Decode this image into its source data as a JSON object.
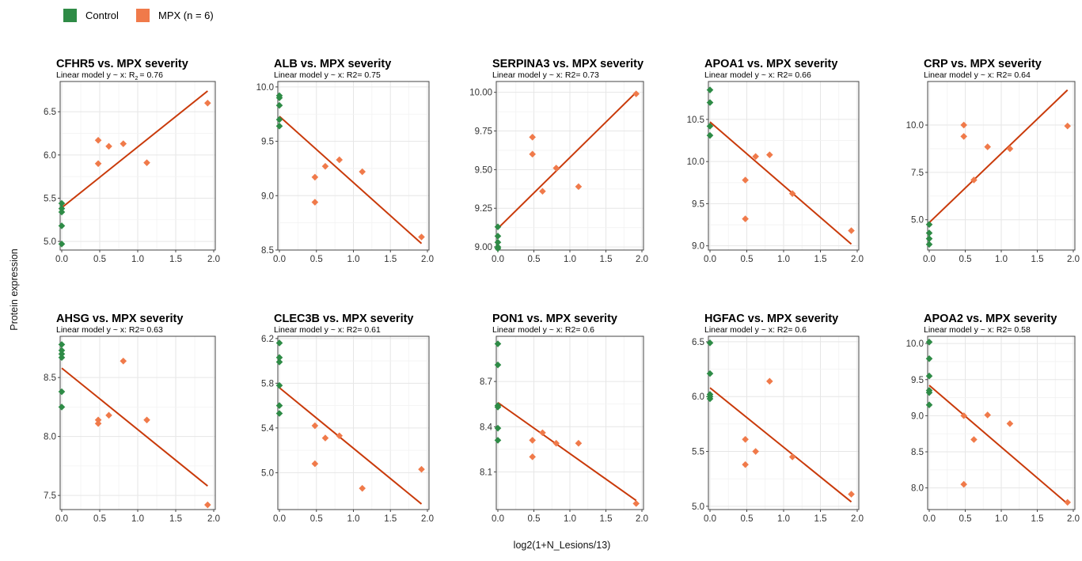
{
  "legend": {
    "items": [
      {
        "label": "Control",
        "color": "#2e8b46"
      },
      {
        "label": "MPX (n = 6)",
        "color": "#f07a4a"
      }
    ]
  },
  "axis": {
    "xlabel": "log2(1+N_Lesions/13)",
    "ylabel": "Protein expression"
  },
  "colors": {
    "control": "#2e8b46",
    "mpx": "#f07a4a",
    "fit": "#c93a0a",
    "grid": "#e6e6e6",
    "frame": "#444444"
  },
  "chart_data": [
    {
      "type": "scatter",
      "title": "CFHR5 vs. MPX severity",
      "subtitle": "Linear model y ~ x: R",
      "subtitle_sub": "2",
      "subtitle_tail": "= 0.76",
      "xlim": [
        0,
        2
      ],
      "xticks": [
        0.0,
        0.5,
        1.0,
        1.5,
        2.0
      ],
      "ylim": [
        4.9,
        6.85
      ],
      "yticks": [
        5.0,
        5.5,
        6.0,
        6.5
      ],
      "control": [
        [
          0,
          5.44
        ],
        [
          0,
          5.38
        ],
        [
          0,
          5.34
        ],
        [
          0,
          5.18
        ],
        [
          0,
          4.97
        ]
      ],
      "mpx": [
        [
          0.48,
          6.17
        ],
        [
          0.48,
          5.9
        ],
        [
          0.62,
          6.1
        ],
        [
          0.81,
          6.13
        ],
        [
          1.12,
          5.91
        ],
        [
          1.92,
          6.6
        ]
      ],
      "fit": [
        [
          0,
          5.39
        ],
        [
          1.92,
          6.74
        ]
      ]
    },
    {
      "type": "scatter",
      "title": "ALB vs. MPX severity",
      "subtitle": "Linear model y ~ x: R2= 0.75",
      "xlim": [
        0,
        2
      ],
      "xticks": [
        0.0,
        0.5,
        1.0,
        1.5,
        2.0
      ],
      "ylim": [
        8.5,
        10.05
      ],
      "yticks": [
        8.5,
        9.0,
        9.5,
        10.0
      ],
      "control": [
        [
          0,
          9.92
        ],
        [
          0,
          9.9
        ],
        [
          0,
          9.83
        ],
        [
          0,
          9.7
        ],
        [
          0,
          9.64
        ]
      ],
      "mpx": [
        [
          0.48,
          9.17
        ],
        [
          0.48,
          8.94
        ],
        [
          0.62,
          9.27
        ],
        [
          0.81,
          9.33
        ],
        [
          1.12,
          9.22
        ],
        [
          1.92,
          8.62
        ]
      ],
      "fit": [
        [
          0,
          9.73
        ],
        [
          1.92,
          8.56
        ]
      ]
    },
    {
      "type": "scatter",
      "title": "SERPINA3 vs. MPX severity",
      "subtitle": "Linear model y ~ x: R2= 0.73",
      "xlim": [
        0,
        2
      ],
      "xticks": [
        0.0,
        0.5,
        1.0,
        1.5,
        2.0
      ],
      "ylim": [
        8.98,
        10.07
      ],
      "yticks": [
        9.0,
        9.25,
        9.5,
        9.75,
        10.0
      ],
      "ytick_labels": [
        "9.00",
        "9.25",
        "9.50",
        "9.75",
        "10.00"
      ],
      "control": [
        [
          0,
          9.13
        ],
        [
          0,
          9.07
        ],
        [
          0,
          9.03
        ],
        [
          0,
          9.0
        ],
        [
          0,
          8.99
        ]
      ],
      "mpx": [
        [
          0.48,
          9.71
        ],
        [
          0.48,
          9.6
        ],
        [
          0.62,
          9.36
        ],
        [
          0.81,
          9.51
        ],
        [
          1.12,
          9.39
        ],
        [
          1.92,
          9.99
        ]
      ],
      "fit": [
        [
          0,
          9.12
        ],
        [
          1.92,
          10.0
        ]
      ]
    },
    {
      "type": "scatter",
      "title": "APOA1 vs. MPX severity",
      "subtitle": "Linear model y ~ x: R2= 0.66",
      "xlim": [
        0,
        2
      ],
      "xticks": [
        0.0,
        0.5,
        1.0,
        1.5,
        2.0
      ],
      "ylim": [
        8.95,
        10.95
      ],
      "yticks": [
        9.0,
        9.5,
        10.0,
        10.5
      ],
      "control": [
        [
          0,
          10.85
        ],
        [
          0,
          10.7
        ],
        [
          0,
          10.42
        ],
        [
          0,
          10.31
        ]
      ],
      "mpx": [
        [
          0.48,
          9.78
        ],
        [
          0.48,
          9.32
        ],
        [
          0.62,
          10.06
        ],
        [
          0.81,
          10.08
        ],
        [
          1.12,
          9.62
        ],
        [
          1.92,
          9.18
        ]
      ],
      "fit": [
        [
          0,
          10.47
        ],
        [
          1.92,
          9.02
        ]
      ]
    },
    {
      "type": "scatter",
      "title": "CRP vs. MPX severity",
      "subtitle": "Linear model y ~ x: R2= 0.64",
      "xlim": [
        0,
        2
      ],
      "xticks": [
        0.0,
        0.5,
        1.0,
        1.5,
        2.0
      ],
      "ylim": [
        3.4,
        12.3
      ],
      "yticks": [
        5.0,
        7.5,
        10.0
      ],
      "control": [
        [
          0,
          4.75
        ],
        [
          0,
          4.3
        ],
        [
          0,
          4.0
        ],
        [
          0,
          3.7
        ]
      ],
      "mpx": [
        [
          0.48,
          10.0
        ],
        [
          0.48,
          9.4
        ],
        [
          0.62,
          7.1
        ],
        [
          0.81,
          8.85
        ],
        [
          1.12,
          8.75
        ],
        [
          1.92,
          9.95
        ]
      ],
      "fit": [
        [
          0,
          4.85
        ],
        [
          1.92,
          11.85
        ]
      ]
    },
    {
      "type": "scatter",
      "title": "AHSG vs. MPX severity",
      "subtitle": "Linear model y ~ x: R2= 0.63",
      "xlim": [
        0,
        2
      ],
      "xticks": [
        0.0,
        0.5,
        1.0,
        1.5,
        2.0
      ],
      "ylim": [
        7.38,
        8.85
      ],
      "yticks": [
        7.5,
        8.0,
        8.5
      ],
      "control": [
        [
          0,
          8.78
        ],
        [
          0,
          8.73
        ],
        [
          0,
          8.7
        ],
        [
          0,
          8.67
        ],
        [
          0,
          8.38
        ],
        [
          0,
          8.25
        ]
      ],
      "mpx": [
        [
          0.48,
          8.14
        ],
        [
          0.48,
          8.11
        ],
        [
          0.62,
          8.18
        ],
        [
          0.81,
          8.64
        ],
        [
          1.12,
          8.14
        ],
        [
          1.92,
          7.42
        ]
      ],
      "fit": [
        [
          0,
          8.58
        ],
        [
          1.92,
          7.58
        ]
      ]
    },
    {
      "type": "scatter",
      "title": "CLEC3B vs. MPX severity",
      "subtitle": "Linear model y ~ x: R2= 0.61",
      "xlim": [
        0,
        2
      ],
      "xticks": [
        0.0,
        0.5,
        1.0,
        1.5,
        2.0
      ],
      "ylim": [
        4.67,
        6.22
      ],
      "yticks": [
        5.0,
        5.4,
        5.8,
        6.2
      ],
      "control": [
        [
          0,
          6.16
        ],
        [
          0,
          6.03
        ],
        [
          0,
          5.99
        ],
        [
          0,
          5.78
        ],
        [
          0,
          5.6
        ],
        [
          0,
          5.53
        ]
      ],
      "mpx": [
        [
          0.48,
          5.42
        ],
        [
          0.48,
          5.08
        ],
        [
          0.62,
          5.31
        ],
        [
          0.81,
          5.33
        ],
        [
          1.12,
          4.86
        ],
        [
          1.92,
          5.03
        ]
      ],
      "fit": [
        [
          0,
          5.76
        ],
        [
          1.92,
          4.72
        ]
      ]
    },
    {
      "type": "scatter",
      "title": "PON1 vs. MPX severity",
      "subtitle": "Linear model y ~ x: R2= 0.6",
      "xlim": [
        0,
        2
      ],
      "xticks": [
        0.0,
        0.5,
        1.0,
        1.5,
        2.0
      ],
      "ylim": [
        7.85,
        9.0
      ],
      "yticks": [
        8.1,
        8.4,
        8.7
      ],
      "control": [
        [
          0,
          8.95
        ],
        [
          0,
          8.81
        ],
        [
          0,
          8.54
        ],
        [
          0,
          8.53
        ],
        [
          0,
          8.39
        ],
        [
          0,
          8.31
        ]
      ],
      "mpx": [
        [
          0.48,
          8.31
        ],
        [
          0.48,
          8.2
        ],
        [
          0.62,
          8.36
        ],
        [
          0.81,
          8.29
        ],
        [
          1.12,
          8.29
        ],
        [
          1.92,
          7.89
        ]
      ],
      "fit": [
        [
          0,
          8.56
        ],
        [
          1.92,
          7.91
        ]
      ]
    },
    {
      "type": "scatter",
      "title": "HGFAC vs. MPX severity",
      "subtitle": "Linear model y ~ x: R2= 0.6",
      "xlim": [
        0,
        2
      ],
      "xticks": [
        0.0,
        0.5,
        1.0,
        1.5,
        2.0
      ],
      "ylim": [
        4.97,
        6.55
      ],
      "yticks": [
        5.0,
        5.5,
        6.0,
        6.5
      ],
      "control": [
        [
          0,
          6.49
        ],
        [
          0,
          6.21
        ],
        [
          0,
          6.02
        ],
        [
          0,
          6.0
        ],
        [
          0,
          5.98
        ]
      ],
      "mpx": [
        [
          0.48,
          5.61
        ],
        [
          0.48,
          5.38
        ],
        [
          0.62,
          5.5
        ],
        [
          0.81,
          6.14
        ],
        [
          1.12,
          5.45
        ],
        [
          1.92,
          5.11
        ]
      ],
      "fit": [
        [
          0,
          6.08
        ],
        [
          1.92,
          5.04
        ]
      ]
    },
    {
      "type": "scatter",
      "title": "APOA2 vs. MPX severity",
      "subtitle": "Linear model y ~ x: R2= 0.58",
      "xlim": [
        0,
        2
      ],
      "xticks": [
        0.0,
        0.5,
        1.0,
        1.5,
        2.0
      ],
      "ylim": [
        7.7,
        10.1
      ],
      "yticks": [
        8.0,
        8.5,
        9.0,
        9.5,
        10.0
      ],
      "control": [
        [
          0,
          10.02
        ],
        [
          0,
          9.79
        ],
        [
          0,
          9.55
        ],
        [
          0,
          9.35
        ],
        [
          0,
          9.32
        ],
        [
          0,
          9.15
        ]
      ],
      "mpx": [
        [
          0.48,
          9.0
        ],
        [
          0.48,
          8.05
        ],
        [
          0.62,
          8.67
        ],
        [
          0.81,
          9.01
        ],
        [
          1.12,
          8.89
        ],
        [
          1.92,
          7.8
        ]
      ],
      "fit": [
        [
          0,
          9.42
        ],
        [
          1.92,
          7.78
        ]
      ]
    }
  ]
}
